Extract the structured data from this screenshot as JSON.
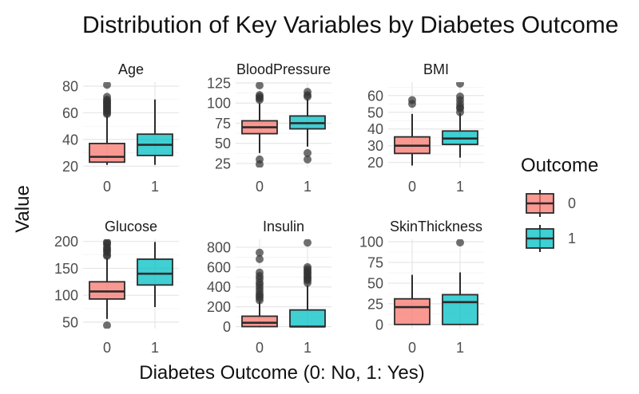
{
  "chart_data": {
    "type": "boxplot",
    "title": "Distribution of Key Variables by Diabetes Outcome",
    "xlabel": "Diabetes Outcome (0: No, 1: Yes)",
    "ylabel": "Value",
    "grid": true,
    "legend": {
      "title": "Outcome",
      "placement": "right",
      "entries": [
        {
          "label": "0",
          "color": "#F8766D"
        },
        {
          "label": "1",
          "color": "#00BFC4"
        }
      ]
    },
    "categories": [
      "0",
      "1"
    ],
    "facets": [
      {
        "name": "Age",
        "ylim": [
          19,
          83
        ],
        "yticks": [
          20,
          40,
          60,
          80
        ],
        "boxes": [
          {
            "group": "0",
            "whisker_low": 21,
            "q1": 23,
            "median": 27,
            "q3": 37,
            "whisker_high": 58,
            "outliers": [
              59,
              60,
              61,
              62,
              63,
              64,
              65,
              66,
              67,
              68,
              69,
              70,
              72,
              81
            ]
          },
          {
            "group": "1",
            "whisker_low": 21,
            "q1": 28,
            "median": 36,
            "q3": 44,
            "whisker_high": 70,
            "outliers": []
          }
        ]
      },
      {
        "name": "BloodPressure",
        "ylim": [
          20,
          126
        ],
        "yticks": [
          25,
          50,
          75,
          100,
          125
        ],
        "boxes": [
          {
            "group": "0",
            "whisker_low": 38,
            "q1": 62,
            "median": 70,
            "q3": 78,
            "whisker_high": 100,
            "outliers": [
              24,
              30,
              104,
              106,
              108,
              110,
              122
            ]
          },
          {
            "group": "1",
            "whisker_low": 46,
            "q1": 68,
            "median": 75,
            "q3": 84,
            "whisker_high": 105,
            "outliers": [
              30,
              38,
              108,
              110,
              114
            ]
          }
        ]
      },
      {
        "name": "BMI",
        "ylim": [
          17,
          68
        ],
        "yticks": [
          20,
          30,
          40,
          50,
          60
        ],
        "boxes": [
          {
            "group": "0",
            "whisker_low": 18.2,
            "q1": 25.4,
            "median": 30,
            "q3": 35.3,
            "whisker_high": 49,
            "outliers": [
              55,
              57.3
            ]
          },
          {
            "group": "1",
            "whisker_low": 22.9,
            "q1": 30.8,
            "median": 34.3,
            "q3": 38.8,
            "whisker_high": 49.6,
            "outliers": [
              50,
              52.3,
              53.2,
              55,
              57.3,
              59.4,
              67.1
            ]
          }
        ]
      },
      {
        "name": "Glucose",
        "ylim": [
          38,
          204
        ],
        "yticks": [
          50,
          100,
          150,
          200
        ],
        "boxes": [
          {
            "group": "0",
            "whisker_low": 56,
            "q1": 93,
            "median": 107,
            "q3": 125,
            "whisker_high": 170,
            "outliers": [
              44,
              173,
              175,
              180,
              183,
              186,
              189,
              194,
              197,
              199
            ]
          },
          {
            "group": "1",
            "whisker_low": 78,
            "q1": 119,
            "median": 140,
            "q3": 167,
            "whisker_high": 199,
            "outliers": []
          }
        ]
      },
      {
        "name": "Insulin",
        "ylim": [
          -20,
          880
        ],
        "yticks": [
          0,
          200,
          400,
          600,
          800
        ],
        "boxes": [
          {
            "group": "0",
            "whisker_low": 0,
            "q1": 0,
            "median": 39,
            "q3": 105,
            "whisker_high": 255,
            "outliers": [
              265,
              290,
              310,
              330,
              360,
              390,
              420,
              445,
              480,
              510,
              545,
              680,
              745
            ]
          },
          {
            "group": "1",
            "whisker_low": 0,
            "q1": 0,
            "median": 0,
            "q3": 168,
            "whisker_high": 415,
            "outliers": [
              440,
              465,
              480,
              495,
              510,
              530,
              545,
              560,
              580,
              600,
              846
            ]
          }
        ]
      },
      {
        "name": "SkinThickness",
        "ylim": [
          -5,
          103
        ],
        "yticks": [
          0,
          25,
          50,
          75,
          100
        ],
        "boxes": [
          {
            "group": "0",
            "whisker_low": 0,
            "q1": 0,
            "median": 21,
            "q3": 31,
            "whisker_high": 60,
            "outliers": []
          },
          {
            "group": "1",
            "whisker_low": 0,
            "q1": 0,
            "median": 27,
            "q3": 36,
            "whisker_high": 63,
            "outliers": [
              99
            ]
          }
        ]
      }
    ]
  }
}
